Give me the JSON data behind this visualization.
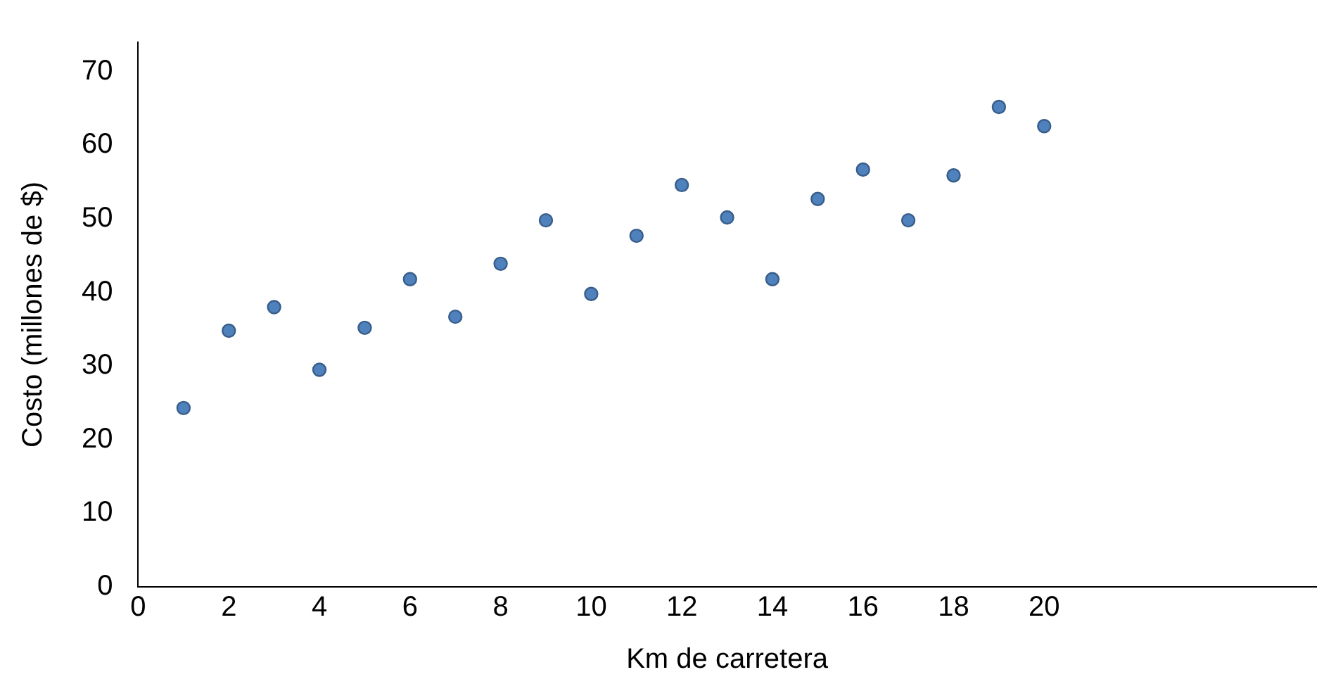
{
  "chart_data": {
    "type": "scatter",
    "xlabel": "Km de carretera",
    "ylabel": "Costo (millones de $)",
    "x": [
      1,
      2,
      3,
      4,
      5,
      6,
      7,
      8,
      9,
      10,
      11,
      12,
      13,
      14,
      15,
      16,
      17,
      18,
      19,
      20
    ],
    "series": [
      {
        "color": "#4f81bd",
        "values": [
          24.3,
          34.8,
          38.0,
          29.5,
          35.2,
          41.8,
          36.7,
          43.9,
          49.8,
          39.8,
          47.7,
          54.6,
          50.2,
          41.8,
          52.7,
          56.7,
          49.8,
          55.9,
          65.2,
          62.6
        ]
      }
    ],
    "xlim": [
      0,
      26
    ],
    "xticks": [
      0,
      2,
      4,
      6,
      8,
      10,
      12,
      14,
      16,
      18,
      20
    ],
    "ylim": [
      0,
      74
    ],
    "yticks": [
      0,
      10,
      20,
      30,
      40,
      50,
      60,
      70
    ],
    "grid": false,
    "legend": false,
    "marker": "circle"
  }
}
